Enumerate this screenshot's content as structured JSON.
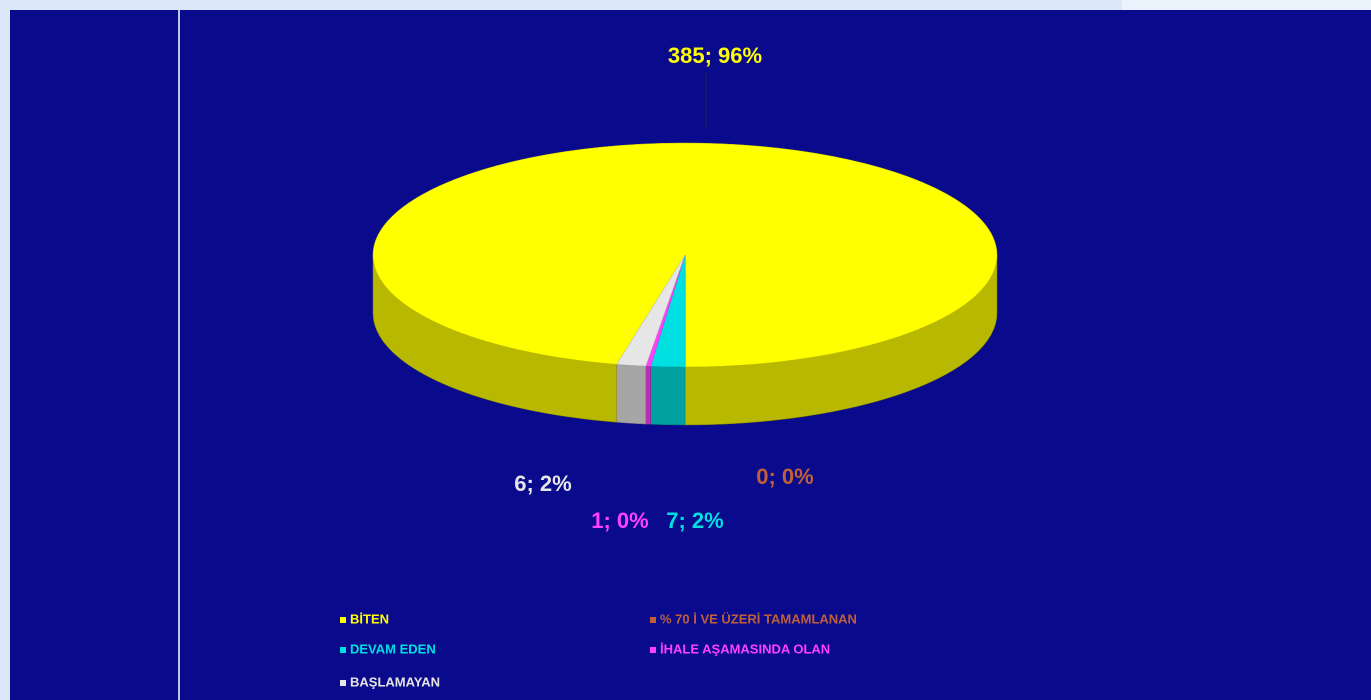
{
  "chart_data": {
    "type": "pie",
    "categories": [
      "BİTEN",
      "% 70 İ VE ÜZERİ TAMAMLANAN",
      "DEVAM EDEN",
      "İHALE AŞAMASINDA OLAN",
      "BAŞLAMAYAN"
    ],
    "values": [
      385,
      0,
      7,
      1,
      6
    ],
    "value_labels": [
      "385; 96%",
      "0; 0%",
      "7; 2%",
      "1; 0%",
      "6; 2%"
    ],
    "colors": [
      "#ffff00",
      "#c0603a",
      "#00e0e0",
      "#ff40ff",
      "#e6e6e6"
    ]
  }
}
